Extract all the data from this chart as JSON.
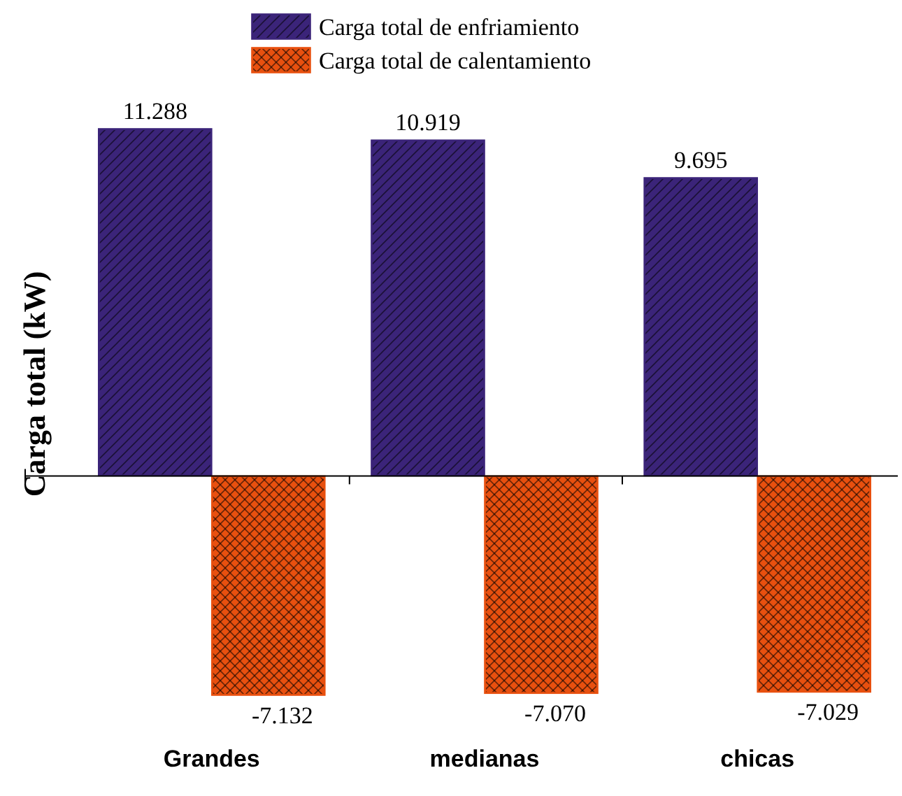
{
  "chart_data": {
    "type": "bar",
    "ylabel": "Carga total (kW)",
    "categories": [
      "Grandes",
      "medianas",
      "chicas"
    ],
    "series": [
      {
        "name": "Carga total de enfriamiento",
        "color": "#3b2479",
        "values": [
          11.288,
          10.919,
          9.695
        ],
        "value_labels": [
          "11.288",
          "10.919",
          "9.695"
        ]
      },
      {
        "name": "Carga total de calentamiento",
        "color": "#e8500f",
        "values": [
          -7.132,
          -7.07,
          -7.029
        ],
        "value_labels": [
          "-7.132",
          "-7.070",
          "-7.029"
        ]
      }
    ],
    "legend": "top"
  }
}
